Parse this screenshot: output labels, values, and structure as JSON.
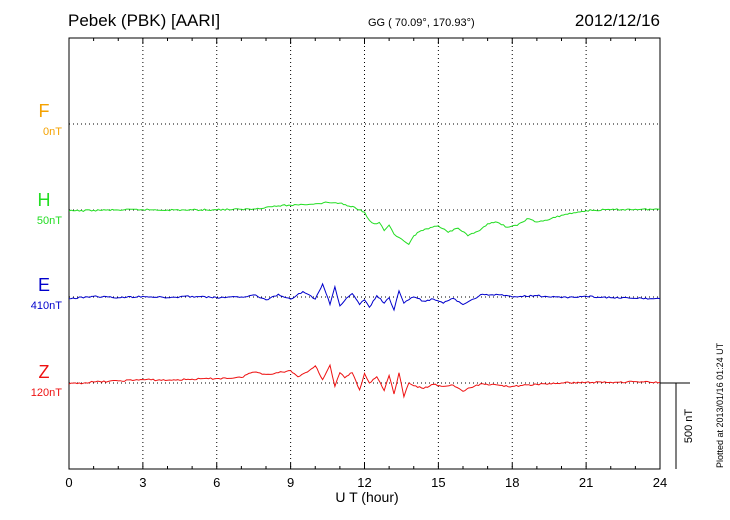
{
  "header": {
    "station": "Pebek (PBK)  [AARI]",
    "coords": "GG ( 70.09°, 170.93°)",
    "date": "2012/12/16",
    "plotted_note": "Plotted at 2013/01/16 01:24  UT"
  },
  "chart_data": {
    "type": "line",
    "xlabel": "U T (hour)",
    "xlim": [
      0,
      24
    ],
    "x_ticks": [
      "0",
      "3",
      "6",
      "9",
      "12",
      "15",
      "18",
      "21",
      "24"
    ],
    "scale_bar_label": "500 nT",
    "scale_bar_nT": 500,
    "series": [
      {
        "name": "F",
        "offset_label": "0nT",
        "color": "#f5a200",
        "baseline_nT": 0,
        "x": [],
        "y": []
      },
      {
        "name": "H",
        "offset_label": "50nT",
        "color": "#22dd22",
        "baseline_nT": 50,
        "x": [
          0,
          1,
          2,
          3,
          4,
          5,
          6,
          7,
          7.5,
          8,
          8.5,
          9,
          9.5,
          10,
          10.5,
          11,
          11.3,
          11.6,
          12,
          12.2,
          12.4,
          12.6,
          12.8,
          13,
          13.2,
          13.4,
          13.6,
          13.8,
          14,
          14.3,
          14.6,
          15,
          15.4,
          15.8,
          16.2,
          16.6,
          17,
          17.4,
          17.8,
          18.2,
          18.6,
          19,
          19.5,
          20,
          21,
          22,
          23,
          24
        ],
        "y": [
          47,
          49,
          50,
          51,
          50,
          50,
          51,
          52,
          53,
          58,
          62,
          64,
          66,
          68,
          72,
          70,
          62,
          58,
          44,
          20,
          10,
          14,
          -10,
          6,
          -20,
          -30,
          -40,
          -50,
          -25,
          -10,
          -5,
          4,
          -15,
          -3,
          -25,
          -12,
          10,
          14,
          0,
          5,
          25,
          15,
          22,
          35,
          48,
          51,
          52,
          52
        ]
      },
      {
        "name": "E",
        "offset_label": "410nT",
        "color": "#0000cc",
        "baseline_nT": 410,
        "x": [
          0,
          1,
          2,
          3,
          4,
          5,
          6,
          7,
          7.5,
          8,
          8.5,
          9,
          9.5,
          10,
          10.3,
          10.6,
          10.8,
          11,
          11.2,
          11.5,
          11.8,
          12,
          12.2,
          12.5,
          12.8,
          13,
          13.2,
          13.4,
          13.6,
          13.8,
          14,
          14.4,
          14.8,
          15.2,
          15.6,
          16,
          16.3,
          16.8,
          17.5,
          18,
          19,
          20,
          21,
          22,
          23,
          24
        ],
        "y": [
          405,
          412,
          408,
          412,
          408,
          412,
          408,
          410,
          416,
          402,
          418,
          404,
          426,
          404,
          448,
          388,
          440,
          384,
          400,
          420,
          388,
          402,
          380,
          414,
          392,
          408,
          372,
          428,
          392,
          402,
          410,
          398,
          404,
          392,
          406,
          388,
          400,
          418,
          416,
          410,
          414,
          408,
          412,
          408,
          406,
          405
        ]
      },
      {
        "name": "Z",
        "offset_label": "120nT",
        "color": "#ee1111",
        "baseline_nT": 120,
        "x": [
          0,
          1,
          2,
          3,
          4,
          5,
          6,
          7,
          7.3,
          7.6,
          8,
          8.5,
          9,
          9.3,
          9.6,
          10,
          10.3,
          10.6,
          10.8,
          11,
          11.2,
          11.5,
          11.8,
          12,
          12.2,
          12.5,
          12.8,
          13,
          13.2,
          13.4,
          13.6,
          13.8,
          14,
          14.4,
          14.8,
          15.2,
          15.6,
          16,
          16.3,
          16.8,
          17.5,
          18,
          19,
          20,
          21,
          22,
          23,
          24
        ],
        "y": [
          117,
          123,
          126,
          130,
          128,
          131,
          133,
          136,
          148,
          152,
          145,
          150,
          156,
          138,
          150,
          170,
          130,
          172,
          110,
          150,
          135,
          150,
          100,
          148,
          120,
          138,
          98,
          142,
          88,
          150,
          80,
          120,
          112,
          104,
          116,
          110,
          114,
          96,
          106,
          118,
          113,
          110,
          116,
          120,
          122,
          122,
          124,
          122
        ]
      }
    ]
  }
}
